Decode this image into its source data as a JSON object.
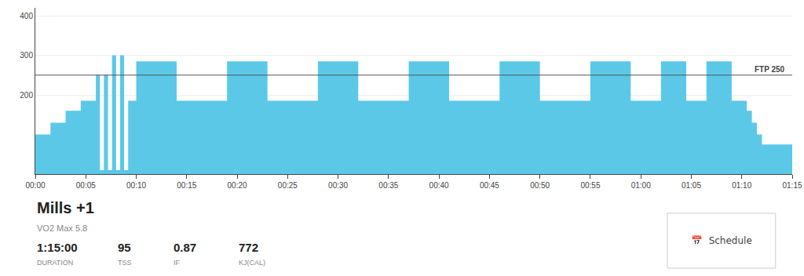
{
  "chart_data": {
    "type": "area",
    "title": "Mills +1",
    "subtitle": "VO2 Max 5.8",
    "color": "#5bc8e8",
    "segments": [
      {
        "start": 0.0,
        "end": 1.5,
        "power": 100
      },
      {
        "start": 1.5,
        "end": 3.0,
        "power": 130
      },
      {
        "start": 3.0,
        "end": 4.5,
        "power": 160
      },
      {
        "start": 4.5,
        "end": 6.0,
        "power": 185
      },
      {
        "start": 6.0,
        "end": 6.4,
        "power": 250
      },
      {
        "start": 6.4,
        "end": 6.8,
        "power": 10
      },
      {
        "start": 6.8,
        "end": 7.2,
        "power": 250
      },
      {
        "start": 7.2,
        "end": 7.6,
        "power": 10
      },
      {
        "start": 7.6,
        "end": 8.0,
        "power": 300
      },
      {
        "start": 8.0,
        "end": 8.4,
        "power": 10
      },
      {
        "start": 8.4,
        "end": 8.8,
        "power": 300
      },
      {
        "start": 8.8,
        "end": 9.2,
        "power": 10
      },
      {
        "start": 9.2,
        "end": 10.0,
        "power": 185
      },
      {
        "start": 10.0,
        "end": 14.0,
        "power": 285
      },
      {
        "start": 14.0,
        "end": 19.0,
        "power": 185
      },
      {
        "start": 19.0,
        "end": 23.0,
        "power": 285
      },
      {
        "start": 23.0,
        "end": 28.0,
        "power": 185
      },
      {
        "start": 28.0,
        "end": 32.0,
        "power": 285
      },
      {
        "start": 32.0,
        "end": 37.0,
        "power": 185
      },
      {
        "start": 37.0,
        "end": 41.0,
        "power": 285
      },
      {
        "start": 41.0,
        "end": 46.0,
        "power": 185
      },
      {
        "start": 46.0,
        "end": 50.0,
        "power": 285
      },
      {
        "start": 50.0,
        "end": 55.0,
        "power": 185
      },
      {
        "start": 55.0,
        "end": 59.0,
        "power": 285
      },
      {
        "start": 59.0,
        "end": 62.0,
        "power": 185
      },
      {
        "start": 62.0,
        "end": 64.5,
        "power": 285
      },
      {
        "start": 64.5,
        "end": 66.5,
        "power": 185
      },
      {
        "start": 66.5,
        "end": 69.0,
        "power": 285
      },
      {
        "start": 69.0,
        "end": 70.5,
        "power": 185
      },
      {
        "start": 70.5,
        "end": 71.0,
        "power": 160
      },
      {
        "start": 71.0,
        "end": 71.5,
        "power": 130
      },
      {
        "start": 71.5,
        "end": 72.0,
        "power": 100
      },
      {
        "start": 72.0,
        "end": 75.0,
        "power": 75
      }
    ],
    "reference_line": {
      "value": 250,
      "label": "FTP 250"
    },
    "xlim": [
      0,
      75
    ],
    "xticks": [
      {
        "value": 0,
        "label": "00:00"
      },
      {
        "value": 5,
        "label": "00:05"
      },
      {
        "value": 10,
        "label": "00:10"
      },
      {
        "value": 15,
        "label": "00:15"
      },
      {
        "value": 20,
        "label": "00:20"
      },
      {
        "value": 25,
        "label": "00:25"
      },
      {
        "value": 30,
        "label": "00:30"
      },
      {
        "value": 35,
        "label": "00:35"
      },
      {
        "value": 40,
        "label": "00:40"
      },
      {
        "value": 45,
        "label": "00:45"
      },
      {
        "value": 50,
        "label": "00:50"
      },
      {
        "value": 55,
        "label": "00:55"
      },
      {
        "value": 60,
        "label": "01:00"
      },
      {
        "value": 65,
        "label": "01:05"
      },
      {
        "value": 70,
        "label": "01:10"
      },
      {
        "value": 75,
        "label": "01:15"
      }
    ],
    "ylim": [
      0,
      420
    ],
    "yticks": [
      200,
      300,
      400
    ],
    "grid": true,
    "stats": [
      {
        "value": "1:15:00",
        "label": "DURATION"
      },
      {
        "value": 95,
        "label": "TSS"
      },
      {
        "value": 0.87,
        "label": "IF"
      },
      {
        "value": 772,
        "label": "KJ(CAL)"
      }
    ],
    "button": "📅  Schedule"
  }
}
